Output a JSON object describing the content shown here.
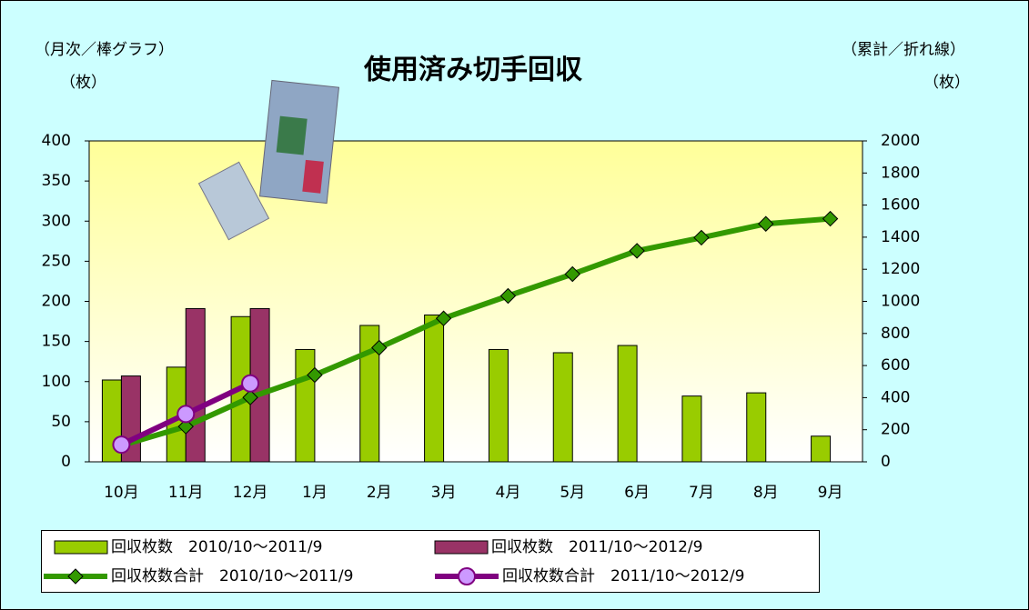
{
  "chart_data": {
    "type": "bar",
    "title": "使用済み切手回収",
    "y_label": "（月次／棒グラフ）",
    "y_unit": "（枚）",
    "y2_label": "（累計／折れ線）",
    "y2_unit": "（枚）",
    "categories": [
      "10月",
      "11月",
      "12月",
      "1月",
      "2月",
      "3月",
      "4月",
      "5月",
      "6月",
      "7月",
      "8月",
      "9月"
    ],
    "ylim": [
      0,
      400
    ],
    "yticks": [
      0,
      50,
      100,
      150,
      200,
      250,
      300,
      350,
      400
    ],
    "y2lim": [
      0,
      2000
    ],
    "y2ticks": [
      0,
      200,
      400,
      600,
      800,
      1000,
      1200,
      1400,
      1600,
      1800,
      2000
    ],
    "series": [
      {
        "name": "回収枚数　2010/10～2011/9",
        "type": "bar",
        "color": "#99cc00",
        "values": [
          102,
          118,
          181,
          140,
          170,
          183,
          140,
          136,
          145,
          82,
          86,
          32
        ]
      },
      {
        "name": "回収枚数　2011/10～2012/9",
        "type": "bar",
        "color": "#993366",
        "values": [
          107,
          191,
          191,
          null,
          null,
          null,
          null,
          null,
          null,
          null,
          null,
          null
        ]
      },
      {
        "name": "回収枚数合計　2010/10～2011/9",
        "type": "line",
        "axis": "y2",
        "color": "#339900",
        "marker": "diamond",
        "values": [
          102,
          220,
          401,
          541,
          711,
          894,
          1034,
          1170,
          1315,
          1397,
          1483,
          1515
        ]
      },
      {
        "name": "回収枚数合計　2011/10～2012/9",
        "type": "line",
        "axis": "y2",
        "color": "#800080",
        "marker": "circle",
        "values": [
          107,
          298,
          489,
          null,
          null,
          null,
          null,
          null,
          null,
          null,
          null,
          null
        ]
      }
    ]
  }
}
